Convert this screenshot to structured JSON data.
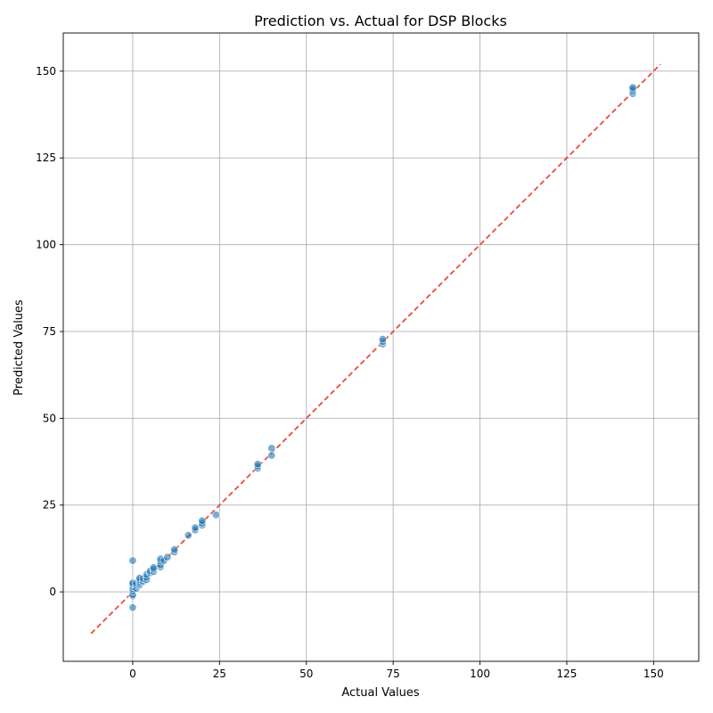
{
  "chart_data": {
    "type": "scatter",
    "title": "Prediction vs. Actual for DSP Blocks",
    "xlabel": "Actual Values",
    "ylabel": "Predicted Values",
    "xlim": [
      -20,
      163
    ],
    "ylim": [
      -20,
      161
    ],
    "xticks": [
      0,
      25,
      50,
      75,
      100,
      125,
      150
    ],
    "yticks": [
      0,
      25,
      50,
      75,
      100,
      125,
      150
    ],
    "grid": true,
    "reference_line": {
      "style": "dashed",
      "color": "#e8392d",
      "from": [
        -12,
        -12
      ],
      "to": [
        152,
        152
      ]
    },
    "series": [
      {
        "color": "#1f77b4",
        "points": [
          [
            0,
            9.0
          ],
          [
            0,
            -4.5
          ],
          [
            0,
            -1.2
          ],
          [
            0,
            -0.8
          ],
          [
            0,
            0.2
          ],
          [
            0,
            0.8
          ],
          [
            0,
            1.5
          ],
          [
            0,
            2.2
          ],
          [
            0,
            2.6
          ],
          [
            1,
            1.0
          ],
          [
            1,
            2.0
          ],
          [
            1,
            2.5
          ],
          [
            2,
            2.0
          ],
          [
            2,
            2.5
          ],
          [
            2,
            3.0
          ],
          [
            2,
            3.5
          ],
          [
            2,
            4.0
          ],
          [
            3,
            3.0
          ],
          [
            3,
            3.8
          ],
          [
            4,
            3.5
          ],
          [
            4,
            4.2
          ],
          [
            4,
            5.0
          ],
          [
            5,
            5.5
          ],
          [
            5,
            6.0
          ],
          [
            6,
            5.8
          ],
          [
            6,
            6.5
          ],
          [
            6,
            7.0
          ],
          [
            8,
            7.2
          ],
          [
            8,
            7.8
          ],
          [
            8,
            8.8
          ],
          [
            8,
            9.5
          ],
          [
            9,
            9.0
          ],
          [
            10,
            10.0
          ],
          [
            12,
            11.5
          ],
          [
            12,
            12.2
          ],
          [
            16,
            16.3
          ],
          [
            18,
            17.8
          ],
          [
            18,
            18.5
          ],
          [
            20,
            19.2
          ],
          [
            20,
            19.8
          ],
          [
            20,
            20.5
          ],
          [
            24,
            22.2
          ],
          [
            36,
            35.6
          ],
          [
            36,
            36.2
          ],
          [
            36,
            36.8
          ],
          [
            40,
            39.3
          ],
          [
            40,
            41.4
          ],
          [
            72,
            71.4
          ],
          [
            72,
            72.1
          ],
          [
            72,
            72.8
          ],
          [
            144,
            143.5
          ],
          [
            144,
            144.2
          ],
          [
            144,
            144.8
          ],
          [
            144,
            145.3
          ]
        ]
      }
    ]
  }
}
